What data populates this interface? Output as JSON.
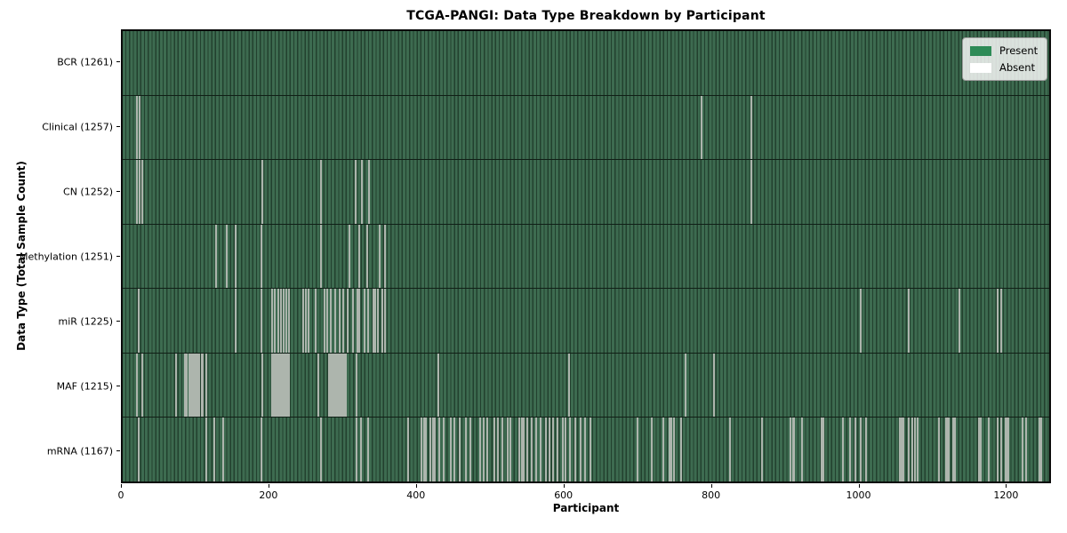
{
  "chart_data": {
    "type": "heatmap",
    "title": "TCGA-PANGI: Data Type Breakdown by Participant",
    "xlabel": "Participant",
    "ylabel": "Data Type (Total Sample Count)",
    "x_ticks": [
      0,
      200,
      400,
      600,
      800,
      1000,
      1200
    ],
    "x_range": [
      0,
      1261
    ],
    "n_participants": 1261,
    "grid": false,
    "legend_position": "upper right",
    "legend": [
      {
        "label": "Present",
        "color": "#2e8b57"
      },
      {
        "label": "Absent",
        "color": "#ffffff"
      }
    ],
    "colors": {
      "present_fill": "#3d6b50",
      "cell_edge": "#22402e",
      "absent_mark": "#adb5ad",
      "row_separator": "#101f16",
      "plot_border": "#0a0a0a"
    },
    "rows": [
      {
        "label": "BCR (1261)",
        "name": "BCR",
        "present_count": 1261,
        "absent_positions": []
      },
      {
        "label": "Clinical (1257)",
        "name": "Clinical",
        "present_count": 1257,
        "absent_positions": [
          18,
          22,
          787,
          854
        ]
      },
      {
        "label": "CN (1252)",
        "name": "CN",
        "present_count": 1252,
        "absent_positions": [
          18,
          22,
          26,
          189,
          269,
          316,
          324,
          334,
          854
        ]
      },
      {
        "label": "Methylation (1251)",
        "name": "Methylation",
        "present_count": 1251,
        "absent_positions": [
          126,
          140,
          153,
          187,
          269,
          307,
          321,
          331,
          349,
          356
        ]
      },
      {
        "label": "miR (1225)",
        "name": "miR",
        "present_count": 1225,
        "absent_positions": [
          20,
          153,
          187,
          202,
          206,
          210,
          214,
          218,
          222,
          225,
          245,
          248,
          252,
          262,
          273,
          277,
          282,
          288,
          294,
          299,
          305,
          312,
          318,
          321,
          328,
          333,
          340,
          343,
          346,
          352,
          356,
          1003,
          1068,
          1137,
          1190,
          1194
        ]
      },
      {
        "label": "MAF (1215)",
        "name": "MAF",
        "present_count": 1215,
        "absent_positions": [
          18,
          26,
          72,
          84,
          86,
          89,
          91,
          93,
          96,
          98,
          100,
          103,
          106,
          108,
          112,
          189,
          202,
          205,
          207,
          209,
          211,
          213,
          215,
          217,
          219,
          221,
          223,
          225,
          265,
          279,
          281,
          283,
          285,
          288,
          290,
          292,
          294,
          297,
          299,
          301,
          303,
          317,
          429,
          606,
          765,
          803
        ]
      },
      {
        "label": "mRNA (1167)",
        "name": "mRNA",
        "present_count": 1167,
        "absent_positions": [
          20,
          112,
          124,
          136,
          187,
          269,
          317,
          323,
          333,
          387,
          406,
          409,
          412,
          418,
          421,
          424,
          430,
          436,
          445,
          450,
          458,
          466,
          472,
          485,
          490,
          495,
          505,
          510,
          516,
          523,
          527,
          539,
          542,
          545,
          550,
          556,
          562,
          568,
          575,
          580,
          585,
          590,
          598,
          601,
          608,
          615,
          622,
          628,
          635,
          700,
          719,
          734,
          743,
          746,
          749,
          759,
          825,
          869,
          908,
          911,
          913,
          923,
          950,
          953,
          979,
          989,
          996,
          1003,
          1011,
          1057,
          1059,
          1061,
          1068,
          1074,
          1077,
          1081,
          1110,
          1119,
          1121,
          1123,
          1129,
          1131,
          1164,
          1167,
          1177,
          1190,
          1194,
          1200,
          1202,
          1204,
          1224,
          1228,
          1246,
          1249
        ]
      }
    ]
  }
}
